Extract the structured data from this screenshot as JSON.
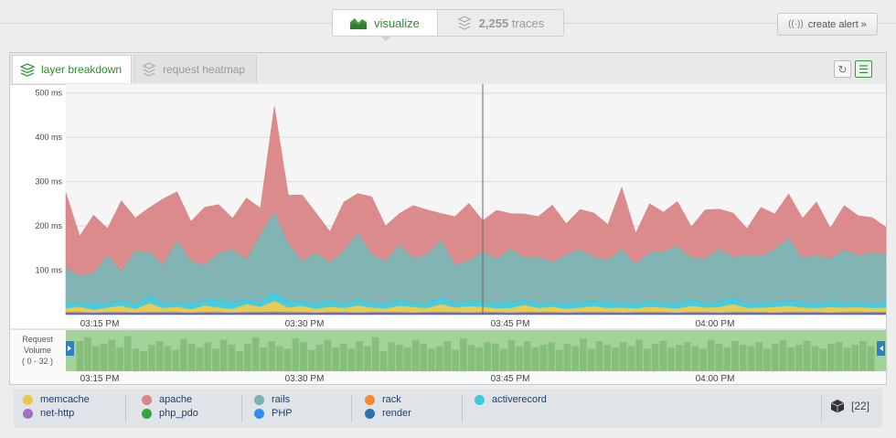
{
  "header": {
    "visualize_label": "visualize",
    "traces_count": "2,255",
    "traces_label": "traces",
    "create_alert_label": "create alert »"
  },
  "tabs": {
    "layer_breakdown": "layer breakdown",
    "request_heatmap": "request heatmap"
  },
  "volume_panel": {
    "label_line1": "Request",
    "label_line2": "Volume",
    "range_label": "( 0 - 32 )"
  },
  "chart_data": {
    "type": "area",
    "stacked": true,
    "ylim": [
      0,
      520
    ],
    "y_ticks": [
      "100 ms",
      "200 ms",
      "300 ms",
      "400 ms",
      "500 ms"
    ],
    "x_ticks": [
      "03:15 PM",
      "03:30 PM",
      "03:45 PM",
      "04:00 PM"
    ],
    "cursor_time": "03:43 PM",
    "series": [
      {
        "name": "render",
        "color": "#2c6fb5",
        "values": [
          2,
          2,
          2,
          2,
          2,
          2,
          2,
          2,
          2,
          2,
          2,
          2,
          2,
          2,
          2,
          2,
          2,
          2,
          2,
          2,
          2,
          2,
          2,
          2,
          2,
          2,
          2,
          2,
          2,
          2,
          2,
          2,
          2,
          2,
          2,
          2,
          2,
          2,
          2,
          2,
          2,
          2,
          2,
          2,
          2,
          2,
          2,
          2,
          2,
          2,
          2,
          2,
          2,
          2,
          2,
          2,
          2,
          2,
          2,
          2
        ]
      },
      {
        "name": "net-http",
        "color": "#a070c8",
        "values": [
          3,
          3,
          2,
          3,
          3,
          2,
          3,
          3,
          3,
          2,
          3,
          3,
          2,
          3,
          3,
          4,
          3,
          3,
          2,
          3,
          3,
          2,
          3,
          3,
          3,
          2,
          3,
          3,
          3,
          2,
          3,
          3,
          2,
          3,
          3,
          3,
          2,
          3,
          3,
          3,
          2,
          3,
          3,
          3,
          2,
          3,
          3,
          2,
          3,
          3,
          3,
          2,
          3,
          3,
          3,
          2,
          3,
          3,
          3,
          3
        ]
      },
      {
        "name": "memcache",
        "color": "#e6c84a",
        "values": [
          8,
          12,
          6,
          10,
          14,
          8,
          20,
          9,
          12,
          7,
          15,
          10,
          8,
          18,
          12,
          24,
          10,
          14,
          8,
          12,
          9,
          16,
          10,
          8,
          14,
          12,
          9,
          18,
          10,
          14,
          12,
          8,
          10,
          16,
          9,
          12,
          8,
          10,
          13,
          9,
          11,
          8,
          12,
          10,
          9,
          14,
          10,
          12,
          18,
          9,
          10,
          12,
          14,
          10,
          9,
          12,
          10,
          11,
          9,
          10
        ]
      },
      {
        "name": "activerecord",
        "color": "#3ec8dc",
        "values": [
          12,
          10,
          14,
          9,
          13,
          11,
          16,
          12,
          10,
          14,
          12,
          18,
          15,
          10,
          13,
          20,
          14,
          11,
          12,
          15,
          10,
          13,
          11,
          12,
          14,
          10,
          12,
          15,
          11,
          13,
          10,
          12,
          14,
          11,
          12,
          10,
          13,
          12,
          11,
          14,
          12,
          10,
          13,
          11,
          12,
          14,
          11,
          12,
          16,
          10,
          12,
          11,
          13,
          12,
          10,
          14,
          11,
          12,
          10,
          12
        ]
      },
      {
        "name": "rails",
        "color": "#7ab0ae",
        "values": [
          80,
          60,
          70,
          110,
          65,
          120,
          100,
          85,
          140,
          95,
          80,
          105,
          120,
          90,
          150,
          180,
          130,
          90,
          115,
          85,
          120,
          150,
          110,
          95,
          125,
          100,
          110,
          130,
          85,
          90,
          115,
          100,
          120,
          95,
          105,
          90,
          110,
          120,
          100,
          95,
          120,
          90,
          110,
          115,
          130,
          95,
          100,
          120,
          90,
          110,
          105,
          120,
          140,
          100,
          110,
          95,
          120,
          105,
          115,
          110
        ]
      },
      {
        "name": "apache",
        "color": "#d98586",
        "values": [
          170,
          90,
          130,
          60,
          160,
          75,
          100,
          150,
          110,
          90,
          130,
          110,
          70,
          140,
          60,
          240,
          110,
          150,
          90,
          70,
          110,
          90,
          130,
          80,
          70,
          120,
          100,
          60,
          110,
          130,
          70,
          110,
          80,
          100,
          90,
          130,
          70,
          90,
          100,
          80,
          140,
          70,
          110,
          90,
          100,
          70,
          110,
          90,
          100,
          60,
          110,
          80,
          100,
          90,
          120,
          70,
          100,
          90,
          80,
          60
        ]
      }
    ]
  },
  "volume_data": {
    "type": "bar",
    "range": [
      0,
      32
    ],
    "values": [
      24,
      27,
      20,
      22,
      25,
      19,
      28,
      18,
      16,
      21,
      24,
      20,
      17,
      26,
      22,
      19,
      23,
      18,
      25,
      21,
      16,
      22,
      27,
      19,
      24,
      20,
      18,
      26,
      23,
      17,
      21,
      25,
      19,
      22,
      18,
      24,
      20,
      27,
      16,
      23,
      21,
      19,
      25,
      22,
      18,
      20,
      24,
      17,
      26,
      21,
      19,
      23,
      22,
      18,
      25,
      20,
      24,
      19,
      21,
      23,
      17,
      22,
      20,
      26,
      18,
      24,
      21,
      19,
      23,
      20,
      25,
      18,
      22,
      24,
      19,
      21,
      23,
      20,
      18,
      25,
      22,
      19,
      24,
      21,
      20,
      23,
      18,
      22,
      25,
      19,
      21,
      24,
      20,
      18,
      22,
      23,
      19,
      21,
      24,
      20
    ]
  },
  "legend": {
    "items": [
      {
        "name": "memcache",
        "color": "#e6c84a"
      },
      {
        "name": "net-http",
        "color": "#a070c8"
      },
      {
        "name": "apache",
        "color": "#d98586"
      },
      {
        "name": "php_pdo",
        "color": "#2ea83a"
      },
      {
        "name": "rails",
        "color": "#7ab0ae"
      },
      {
        "name": "PHP",
        "color": "#2f8fe8"
      },
      {
        "name": "rack",
        "color": "#f08a2c"
      },
      {
        "name": "render",
        "color": "#2c6fb5"
      },
      {
        "name": "activerecord",
        "color": "#3ec8dc"
      }
    ],
    "count": "[22]"
  }
}
